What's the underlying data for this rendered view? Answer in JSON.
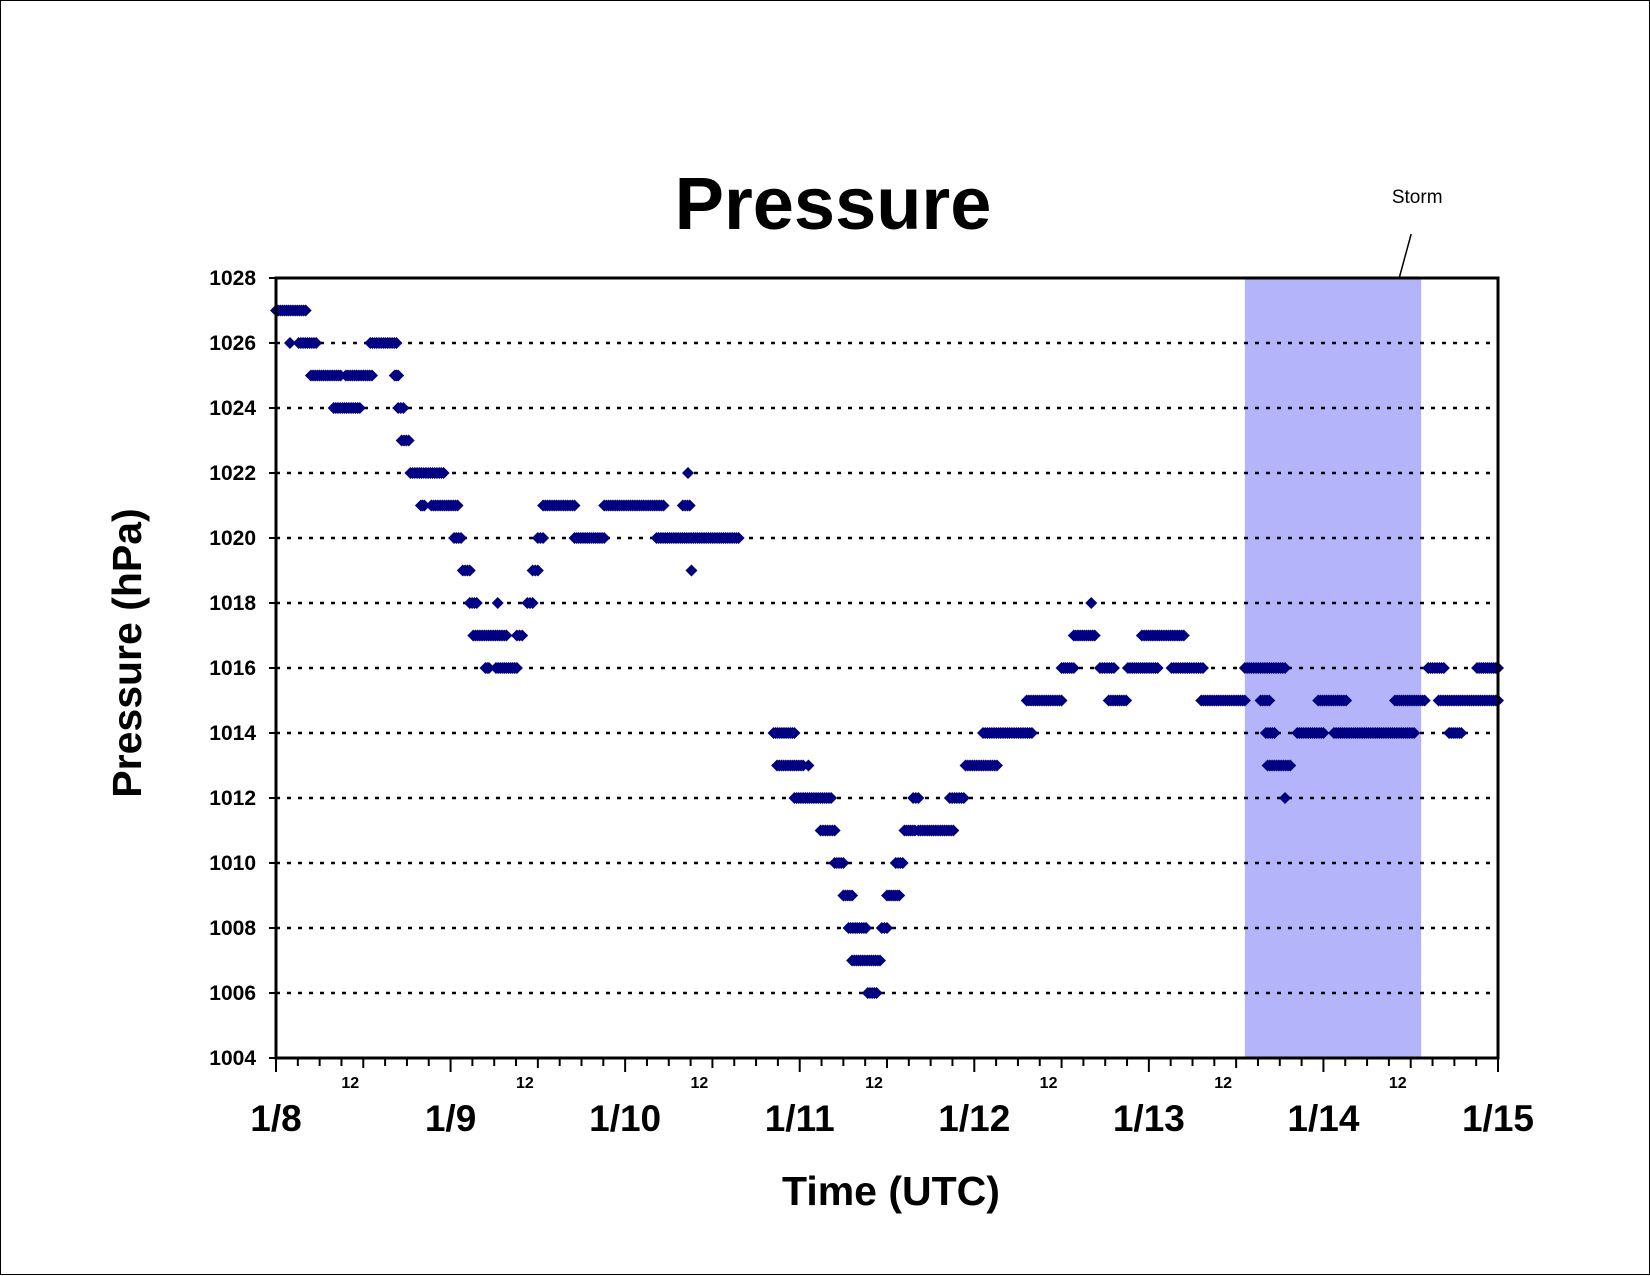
{
  "chart_data": {
    "type": "scatter",
    "title": "Pressure",
    "xlabel": "Time (UTC)",
    "ylabel": "Pressure (hPa)",
    "x_unit": "days since 1/8 00 UTC",
    "xlim": [
      0,
      7
    ],
    "ylim": [
      1004,
      1028
    ],
    "y_ticks": [
      1004,
      1006,
      1008,
      1010,
      1012,
      1014,
      1016,
      1018,
      1020,
      1022,
      1024,
      1026,
      1028
    ],
    "day_labels": [
      "1/8",
      "1/9",
      "1/10",
      "1/11",
      "1/12",
      "1/13",
      "1/14",
      "1/15"
    ],
    "midday_label": "12",
    "grid": "horizontal dotted",
    "marker_color": "#000080",
    "storm": {
      "label": "Storm",
      "x_start": 5.55,
      "x_end": 6.56,
      "color": "#b4b4fa"
    },
    "series": [
      {
        "color": "#000080",
        "runs": [
          [
            0.0,
            0.17,
            1027
          ],
          [
            0.08,
            0.08,
            1026
          ],
          [
            0.13,
            0.23,
            1026
          ],
          [
            0.2,
            0.37,
            1025
          ],
          [
            0.4,
            0.55,
            1025
          ],
          [
            0.33,
            0.48,
            1024
          ],
          [
            0.54,
            0.69,
            1026
          ],
          [
            0.68,
            0.7,
            1025
          ],
          [
            0.7,
            0.73,
            1024
          ],
          [
            0.72,
            0.76,
            1023
          ],
          [
            0.77,
            0.96,
            1022
          ],
          [
            0.83,
            0.85,
            1021
          ],
          [
            0.89,
            1.04,
            1021
          ],
          [
            1.02,
            1.06,
            1020
          ],
          [
            1.07,
            1.11,
            1019
          ],
          [
            1.11,
            1.15,
            1018
          ],
          [
            1.13,
            1.32,
            1017
          ],
          [
            1.2,
            1.22,
            1016
          ],
          [
            1.26,
            1.38,
            1016
          ],
          [
            1.27,
            1.27,
            1018
          ],
          [
            1.38,
            1.41,
            1017
          ],
          [
            1.44,
            1.47,
            1018
          ],
          [
            1.47,
            1.5,
            1019
          ],
          [
            1.5,
            1.53,
            1020
          ],
          [
            1.53,
            1.71,
            1021
          ],
          [
            1.71,
            1.88,
            1020
          ],
          [
            1.88,
            2.22,
            1021
          ],
          [
            2.33,
            2.37,
            1021
          ],
          [
            2.36,
            2.36,
            1022
          ],
          [
            2.38,
            2.38,
            1019
          ],
          [
            2.18,
            2.65,
            1020
          ],
          [
            2.85,
            2.97,
            1014
          ],
          [
            2.87,
            3.02,
            1013
          ],
          [
            3.05,
            3.05,
            1013
          ],
          [
            2.97,
            3.18,
            1012
          ],
          [
            3.12,
            3.2,
            1011
          ],
          [
            3.2,
            3.25,
            1010
          ],
          [
            3.25,
            3.3,
            1009
          ],
          [
            3.28,
            3.38,
            1008
          ],
          [
            3.3,
            3.46,
            1007
          ],
          [
            3.39,
            3.44,
            1006
          ],
          [
            3.47,
            3.5,
            1008
          ],
          [
            3.5,
            3.57,
            1009
          ],
          [
            3.55,
            3.59,
            1010
          ],
          [
            3.6,
            3.66,
            1011
          ],
          [
            3.65,
            3.68,
            1012
          ],
          [
            3.68,
            3.88,
            1011
          ],
          [
            3.86,
            3.94,
            1012
          ],
          [
            3.95,
            4.13,
            1013
          ],
          [
            4.05,
            4.33,
            1014
          ],
          [
            4.3,
            4.5,
            1015
          ],
          [
            4.5,
            4.57,
            1016
          ],
          [
            4.57,
            4.69,
            1017
          ],
          [
            4.67,
            4.67,
            1018
          ],
          [
            4.72,
            4.8,
            1016
          ],
          [
            4.77,
            4.87,
            1015
          ],
          [
            4.88,
            5.05,
            1016
          ],
          [
            4.96,
            5.2,
            1017
          ],
          [
            5.13,
            5.31,
            1016
          ],
          [
            5.3,
            5.55,
            1015
          ],
          [
            5.55,
            5.78,
            1016
          ],
          [
            5.64,
            5.69,
            1015
          ],
          [
            5.67,
            5.72,
            1014
          ],
          [
            5.68,
            5.81,
            1013
          ],
          [
            5.78,
            5.78,
            1012
          ],
          [
            5.85,
            6.0,
            1014
          ],
          [
            5.97,
            6.13,
            1015
          ],
          [
            6.06,
            6.52,
            1014
          ],
          [
            6.41,
            6.58,
            1015
          ],
          [
            6.6,
            6.69,
            1016
          ],
          [
            6.66,
            7.0,
            1015
          ],
          [
            6.72,
            6.79,
            1014
          ],
          [
            6.88,
            7.0,
            1016
          ]
        ]
      }
    ]
  }
}
